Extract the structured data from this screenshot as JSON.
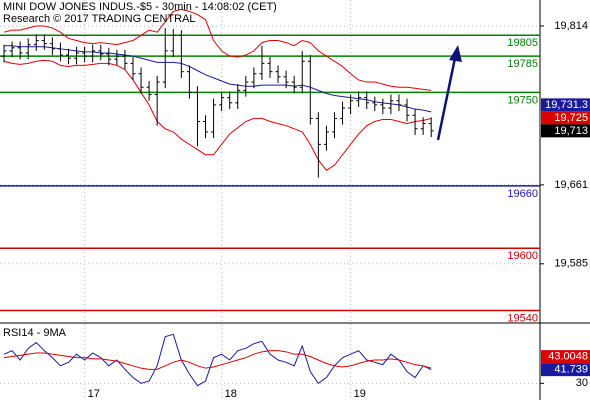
{
  "chart_data": [
    {
      "type": "ohlc",
      "title": "MINI DOW JONES INDUS.-$5 - 30min - 14:08:02 (CET)",
      "subtitle": "Research © 2017 TRADING CENTRAL",
      "categories": [
        null,
        null,
        null,
        null,
        null,
        null,
        null,
        null,
        null,
        null,
        "17",
        null,
        null,
        null,
        null,
        null,
        null,
        null,
        null,
        null,
        null,
        null,
        null,
        null,
        null,
        null,
        null,
        "18",
        null,
        null,
        null,
        null,
        null,
        null,
        null,
        null,
        null,
        null,
        null,
        null,
        null,
        null,
        null,
        "19",
        null,
        null,
        null,
        null,
        null,
        null,
        null,
        null,
        null,
        null,
        null,
        null,
        null,
        null,
        null,
        null,
        null,
        null,
        null,
        null,
        null,
        null,
        null
      ],
      "open": [
        19785,
        19790,
        19793,
        19788,
        19796,
        19800,
        19797,
        19792,
        19786,
        19783,
        19788,
        19785,
        19790,
        19787,
        19782,
        19785,
        19778,
        19768,
        19755,
        19748,
        19760,
        19790,
        19805,
        19770,
        19750,
        19722,
        19712,
        19738,
        19745,
        19740,
        19752,
        19760,
        19768,
        19778,
        19770,
        19765,
        19760,
        19755,
        19780,
        19725,
        19700,
        19712,
        19725,
        19735,
        19742,
        19745,
        19740,
        19738,
        19735,
        19742,
        19738,
        19728,
        19715,
        19720,
        null,
        null,
        null,
        null,
        null,
        null,
        null,
        null,
        null,
        null,
        null,
        null,
        null
      ],
      "high": [
        19796,
        19799,
        19799,
        19802,
        19806,
        19806,
        19803,
        19798,
        19792,
        19794,
        19794,
        19796,
        19796,
        19793,
        19791,
        19791,
        19784,
        19774,
        19761,
        19766,
        19812,
        19811,
        19810,
        19776,
        19756,
        19728,
        19744,
        19751,
        19751,
        19758,
        19766,
        19774,
        19795,
        19784,
        19776,
        19771,
        19766,
        19790,
        19786,
        19731,
        19718,
        19731,
        19741,
        19748,
        19751,
        19751,
        19746,
        19744,
        19748,
        19748,
        19744,
        19734,
        19726,
        19726,
        null,
        null,
        null,
        null,
        null,
        null,
        null,
        null,
        null,
        null,
        null,
        null,
        null
      ],
      "low": [
        19779,
        19784,
        19782,
        19782,
        19790,
        19791,
        19786,
        19780,
        19777,
        19777,
        19779,
        19779,
        19781,
        19776,
        19776,
        19772,
        19762,
        19749,
        19742,
        19718,
        19754,
        19784,
        19764,
        19744,
        19698,
        19706,
        19706,
        19732,
        19734,
        19734,
        19746,
        19754,
        19762,
        19764,
        19759,
        19754,
        19749,
        19749,
        19719,
        19668,
        19694,
        19706,
        19719,
        19729,
        19736,
        19734,
        19732,
        19729,
        19729,
        19732,
        19722,
        19709,
        19709,
        19707,
        null,
        null,
        null,
        null,
        null,
        null,
        null,
        null,
        null,
        null,
        null,
        null,
        null
      ],
      "close": [
        19790,
        19793,
        19788,
        19796,
        19800,
        19797,
        19792,
        19786,
        19783,
        19788,
        19785,
        19790,
        19787,
        19782,
        19785,
        19778,
        19768,
        19755,
        19748,
        19760,
        19790,
        19805,
        19770,
        19750,
        19722,
        19712,
        19738,
        19745,
        19740,
        19752,
        19760,
        19768,
        19778,
        19770,
        19765,
        19760,
        19755,
        19780,
        19725,
        19700,
        19712,
        19725,
        19735,
        19742,
        19745,
        19740,
        19738,
        19735,
        19742,
        19738,
        19728,
        19715,
        19720,
        19713,
        null,
        null,
        null,
        null,
        null,
        null,
        null,
        null,
        null,
        null,
        null,
        null,
        null
      ],
      "bar_color": "#000000",
      "series": [
        {
          "color": "#e00000",
          "values": [
            19808,
            19810,
            19810,
            19812,
            19814,
            19814,
            19812,
            19808,
            19802,
            19800,
            19798,
            19797,
            19798,
            19797,
            19796,
            19798,
            19800,
            19805,
            19810,
            19808,
            19818,
            19828,
            19830,
            19828,
            19825,
            19820,
            19800,
            19790,
            19785,
            19784,
            19786,
            19790,
            19798,
            19800,
            19800,
            19798,
            19795,
            19800,
            19798,
            19790,
            19785,
            19780,
            19775,
            19768,
            19762,
            19760,
            19760,
            19758,
            19756,
            19755,
            19755,
            19754,
            19753,
            19752,
            null,
            null,
            null,
            null,
            null,
            null,
            null,
            null,
            null,
            null,
            null,
            null,
            null
          ]
        },
        {
          "color": "#e00000",
          "values": [
            19780,
            19778,
            19777,
            19778,
            19780,
            19781,
            19780,
            19776,
            19775,
            19776,
            19776,
            19777,
            19778,
            19778,
            19776,
            19772,
            19762,
            19750,
            19738,
            19722,
            19715,
            19712,
            19705,
            19700,
            19695,
            19690,
            19690,
            19700,
            19710,
            19716,
            19722,
            19725,
            19725,
            19722,
            19720,
            19718,
            19715,
            19712,
            19700,
            19685,
            19675,
            19680,
            19690,
            19700,
            19710,
            19718,
            19722,
            19724,
            19724,
            19722,
            19720,
            19722,
            19723,
            19725,
            null,
            null,
            null,
            null,
            null,
            null,
            null,
            null,
            null,
            null,
            null,
            null,
            null
          ]
        },
        {
          "color": "#1a1aa0",
          "values": [
            19795,
            19795,
            19794,
            19794,
            19794,
            19794,
            19793,
            19792,
            19791,
            19790,
            19789,
            19789,
            19788,
            19788,
            19787,
            19786,
            19785,
            19783,
            19781,
            19779,
            19779,
            19779,
            19778,
            19775,
            19771,
            19767,
            19764,
            19761,
            19758,
            19757,
            19756,
            19756,
            19757,
            19757,
            19757,
            19757,
            19756,
            19757,
            19755,
            19752,
            19749,
            19747,
            19746,
            19745,
            19744,
            19743,
            19741,
            19740,
            19739,
            19738,
            19736,
            19734,
            19733,
            19731.3,
            null,
            null,
            null,
            null,
            null,
            null,
            null,
            null,
            null,
            null,
            null,
            null,
            null
          ]
        }
      ],
      "levels": [
        {
          "value": 19805,
          "color": "#008000"
        },
        {
          "value": 19785,
          "color": "#008000"
        },
        {
          "value": 19750,
          "color": "#008000"
        },
        {
          "value": 19660,
          "color": "#1a1aa0"
        },
        {
          "value": 19600,
          "color": "#cc0000"
        },
        {
          "value": 19540,
          "color": "#cc0000"
        }
      ],
      "tags": [
        {
          "value": 19731.3,
          "label": "19,731.3",
          "color": "#1a1aa0"
        },
        {
          "value": 19725,
          "label": "19,725",
          "color": "#dd0000"
        },
        {
          "value": 19713,
          "label": "19,713",
          "color": "#000000"
        }
      ],
      "ylim": [
        19528,
        19839
      ],
      "yticks": [
        {
          "value": 19814,
          "label": "19,814"
        },
        {
          "value": 19661,
          "label": "19,661"
        },
        {
          "value": 19585,
          "label": "19,585"
        }
      ],
      "grid": true
    },
    {
      "type": "line",
      "title": "RSI14 - 9MA",
      "series": [
        {
          "color": "#1a1aa0",
          "values": [
            55,
            58,
            50,
            60,
            65,
            58,
            52,
            45,
            48,
            55,
            50,
            56,
            52,
            45,
            50,
            42,
            35,
            30,
            32,
            45,
            70,
            72,
            50,
            38,
            28,
            32,
            52,
            55,
            50,
            58,
            60,
            64,
            66,
            55,
            50,
            48,
            45,
            62,
            40,
            30,
            35,
            45,
            52,
            55,
            58,
            50,
            48,
            46,
            55,
            50,
            40,
            35,
            45,
            41.739,
            null,
            null,
            null,
            null,
            null,
            null,
            null,
            null,
            null,
            null,
            null,
            null,
            null
          ]
        },
        {
          "color": "#dd0000",
          "values": [
            52,
            53,
            54,
            55,
            56,
            56,
            55,
            54,
            53,
            52,
            52,
            51,
            51,
            50,
            49,
            47,
            45,
            43,
            42,
            42,
            45,
            48,
            50,
            48,
            45,
            43,
            44,
            46,
            48,
            50,
            52,
            55,
            57,
            58,
            58,
            57,
            55,
            55,
            53,
            50,
            47,
            45,
            44,
            45,
            47,
            49,
            50,
            50,
            51,
            50,
            48,
            46,
            45,
            43.0048,
            null,
            null,
            null,
            null,
            null,
            null,
            null,
            null,
            null,
            null,
            null,
            null,
            null
          ]
        }
      ],
      "tags": [
        {
          "value": 43.0048,
          "color": "#dd0000"
        },
        {
          "value": 41.739,
          "color": "#1a1aa0"
        }
      ],
      "ylim": [
        20,
        80
      ],
      "yticks": [
        30
      ],
      "grid": true
    }
  ]
}
